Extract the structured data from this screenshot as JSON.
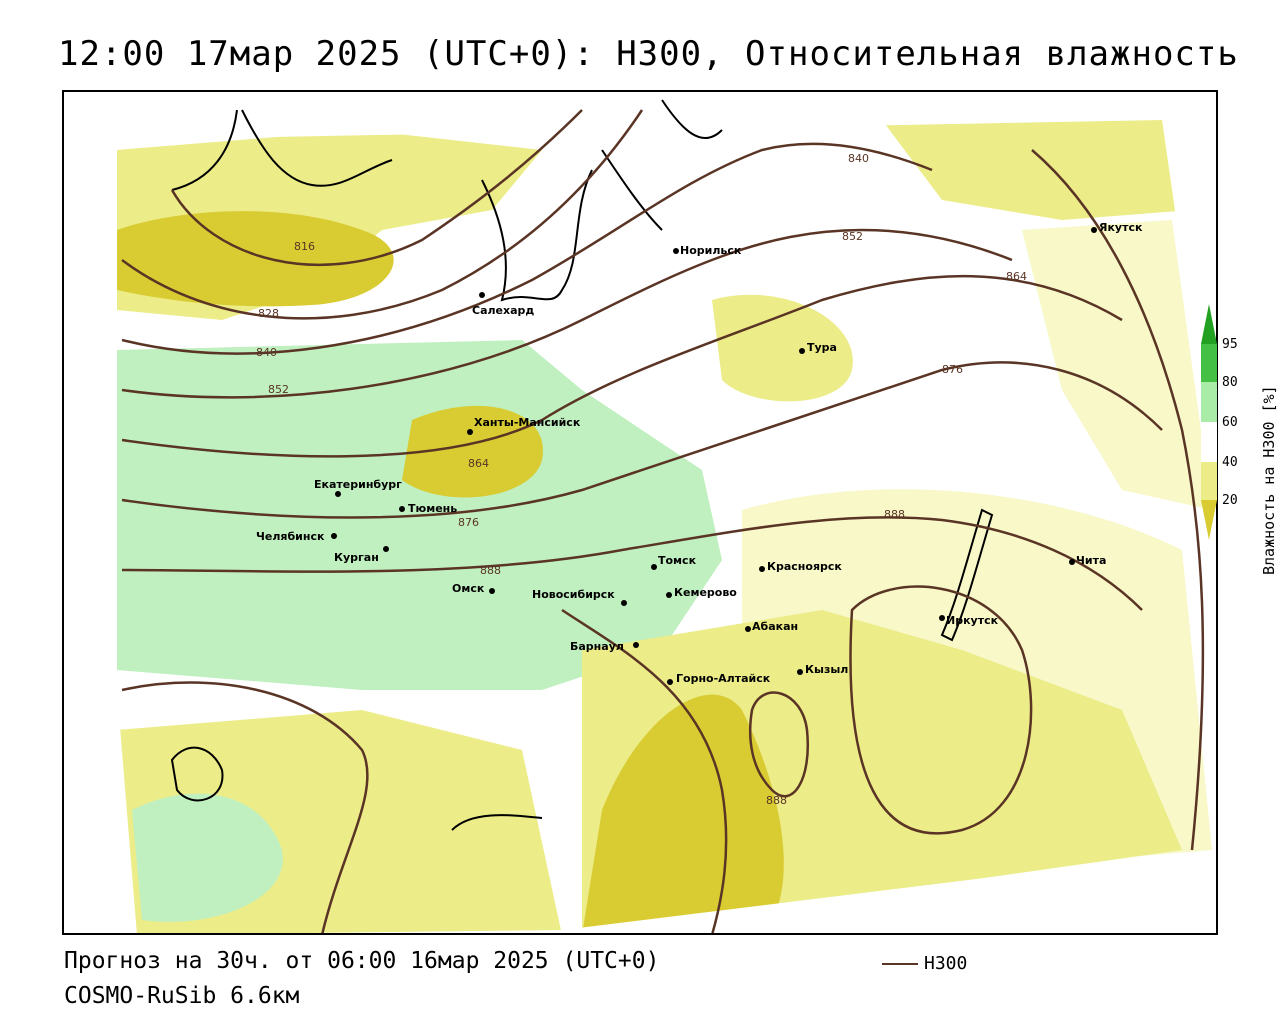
{
  "title": "12:00 17мар 2025 (UTC+0): H300, Относительная влажность",
  "footer": {
    "forecast": "Прогноз на 30ч. от 06:00 16мар 2025 (UTC+0)",
    "model": "COSMO-RuSib 6.6км",
    "legend_label": "H300"
  },
  "colors": {
    "contour": "#5a3424",
    "dry_strong": "#d9cc33",
    "dry": "#ecec88",
    "dry_light": "#f8f8c8",
    "moist": "#c0f0c0",
    "wet": "#78e078",
    "very_wet": "#22a022"
  },
  "scale": {
    "title": "Влажность на Н300 [%]",
    "ticks": [
      "95",
      "80",
      "60",
      "40",
      "20"
    ]
  },
  "contour_labels": [
    {
      "text": "816"
    },
    {
      "text": "828"
    },
    {
      "text": "840"
    },
    {
      "text": "852"
    },
    {
      "text": "864"
    },
    {
      "text": "876"
    },
    {
      "text": "888"
    },
    {
      "text": "840"
    },
    {
      "text": "852"
    },
    {
      "text": "864"
    },
    {
      "text": "876"
    },
    {
      "text": "888"
    },
    {
      "text": "888"
    }
  ],
  "cities": [
    {
      "name": "Салехард"
    },
    {
      "name": "Норильск"
    },
    {
      "name": "Якутск"
    },
    {
      "name": "Тура"
    },
    {
      "name": "Ханты-Мансийск"
    },
    {
      "name": "Екатеринбург"
    },
    {
      "name": "Тюмень"
    },
    {
      "name": "Челябинск"
    },
    {
      "name": "Курган"
    },
    {
      "name": "Омск"
    },
    {
      "name": "Томск"
    },
    {
      "name": "Красноярск"
    },
    {
      "name": "Новосибирск"
    },
    {
      "name": "Кемерово"
    },
    {
      "name": "Абакан"
    },
    {
      "name": "Барнаул"
    },
    {
      "name": "Горно-Алтайск"
    },
    {
      "name": "Кызыл"
    },
    {
      "name": "Иркутск"
    },
    {
      "name": "Чита"
    }
  ]
}
